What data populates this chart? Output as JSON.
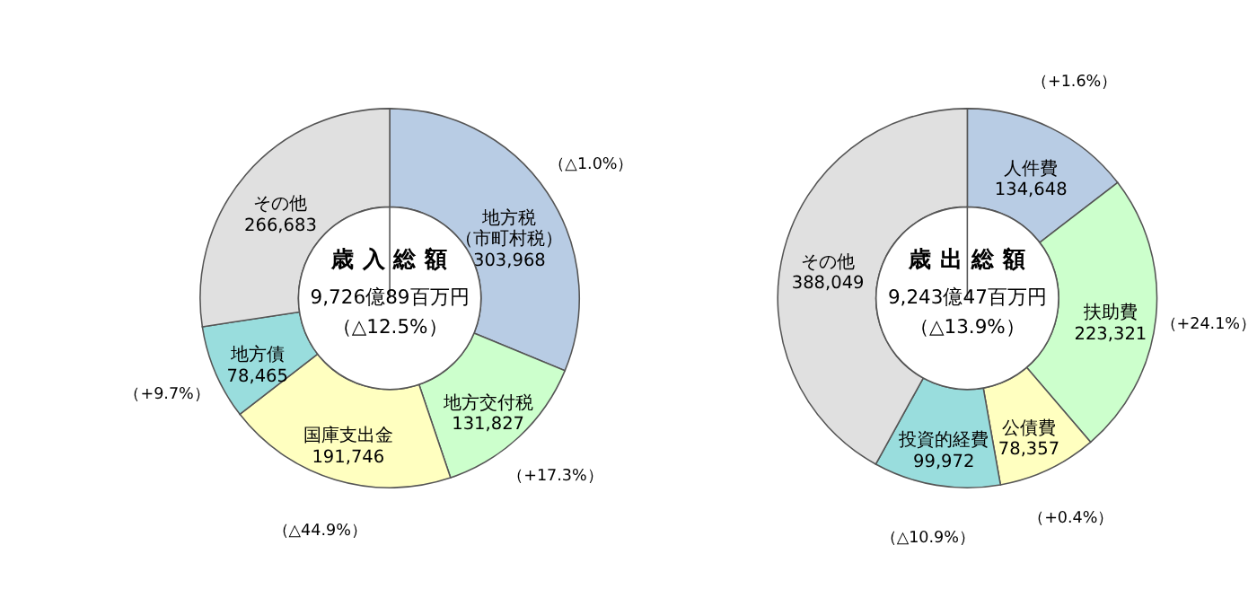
{
  "chart_data": [
    {
      "type": "donut",
      "title": "歳 入 総 額",
      "subtitle": "9,726億89百万円",
      "categories": [
        "地方税（市町村税）",
        "地方交付税",
        "国庫支出金",
        "地方債",
        "その他"
      ],
      "values": [
        303968,
        131827,
        191746,
        78465,
        266683
      ],
      "colors": [
        "#b8cce4",
        "#ccffcc",
        "#ffffc0",
        "#99dddd",
        "#e0e0e0"
      ],
      "value_labels": [
        "303,968",
        "131,827",
        "191,746",
        "78,465",
        "266,683"
      ],
      "annotations": [
        "（△12.5%）",
        "（△1.0%）",
        "（+17.3%）",
        "（△44.9%）",
        "（+9.7%）"
      ]
    },
    {
      "type": "donut",
      "title": "歳 出 総 額",
      "subtitle": "9,243億47百万円",
      "categories": [
        "人件費",
        "扶助費",
        "公債費",
        "投資的経費",
        "その他"
      ],
      "values": [
        134648,
        223321,
        78357,
        99972,
        388049
      ],
      "colors": [
        "#b8cce4",
        "#ccffcc",
        "#ffffc0",
        "#99dddd",
        "#e0e0e0"
      ],
      "value_labels": [
        "134,648",
        "223,321",
        "78,357",
        "99,972",
        "388,049"
      ],
      "annotations": [
        "（△13.9%）",
        "（+1.6%）",
        "（+24.1%）",
        "（+0.4%）",
        "（△10.9%）"
      ]
    }
  ]
}
